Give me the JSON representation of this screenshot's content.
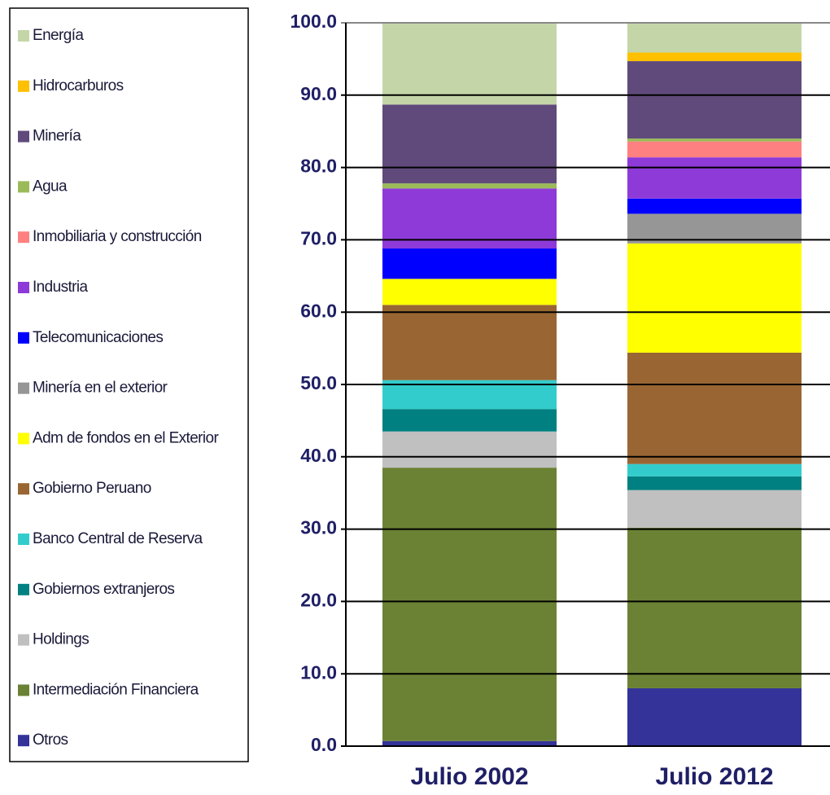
{
  "chart_data": {
    "type": "stacked_bar",
    "categories": [
      "Julio 2002",
      "Julio 2012"
    ],
    "series": [
      {
        "name": "Energía",
        "color": "#c4d6a8",
        "values": [
          11.3,
          4.1
        ]
      },
      {
        "name": "Hidrocarburos",
        "color": "#ffc000",
        "values": [
          0,
          1.2
        ]
      },
      {
        "name": "Minería",
        "color": "#604a7b",
        "values": [
          10.9,
          10.7
        ]
      },
      {
        "name": "Agua",
        "color": "#9bbb59",
        "values": [
          0.7,
          0.4
        ]
      },
      {
        "name": "Inmobiliaria y construcción",
        "color": "#ff8080",
        "values": [
          0,
          2.2
        ]
      },
      {
        "name": "Industria",
        "color": "#8e3ad8",
        "values": [
          8.3,
          5.7
        ]
      },
      {
        "name": "Telecomunicaciones",
        "color": "#0000ff",
        "values": [
          4.2,
          2.1
        ]
      },
      {
        "name": "Minería en el exterior",
        "color": "#969696",
        "values": [
          0,
          4.1
        ]
      },
      {
        "name": "Adm de fondos en el Exterior",
        "color": "#ffff00",
        "values": [
          3.6,
          15.1
        ]
      },
      {
        "name": "Gobierno Peruano",
        "color": "#996633",
        "values": [
          10.4,
          15.4
        ]
      },
      {
        "name": "Banco Central de Reserva",
        "color": "#33cccc",
        "values": [
          4.0,
          1.7
        ]
      },
      {
        "name": "Gobiernos extranjeros",
        "color": "#008080",
        "values": [
          3.1,
          1.9
        ]
      },
      {
        "name": "Holdings",
        "color": "#c0c0c0",
        "values": [
          5.0,
          5.2
        ]
      },
      {
        "name": "Intermediación Financiera",
        "color": "#6b8235",
        "values": [
          37.8,
          22.2
        ]
      },
      {
        "name": "Otros",
        "color": "#333399",
        "values": [
          0.7,
          8.0
        ]
      }
    ],
    "ylim": [
      0,
      100
    ],
    "yticks": [
      {
        "value": 0,
        "label": "0.0"
      },
      {
        "value": 10,
        "label": "10.0"
      },
      {
        "value": 20,
        "label": "20.0"
      },
      {
        "value": 30,
        "label": "30.0"
      },
      {
        "value": 40,
        "label": "40.0"
      },
      {
        "value": 50,
        "label": "50.0"
      },
      {
        "value": 60,
        "label": "60.0"
      },
      {
        "value": 70,
        "label": "70.0"
      },
      {
        "value": 80,
        "label": "80.0"
      },
      {
        "value": 90,
        "label": "90.0"
      },
      {
        "value": 100,
        "label": "100.0"
      }
    ],
    "grid": true,
    "legend": "left"
  }
}
